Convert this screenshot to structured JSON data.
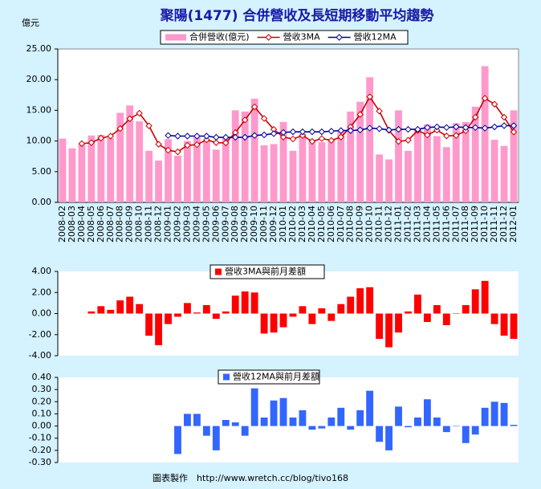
{
  "unit_label": "億元",
  "footer": "圖表製作　http://www.wretch.cc/blog/tivo168",
  "chart_data": [
    {
      "type": "bar",
      "title": "聚陽(1477) 合併營收及長短期移動平均趨勢",
      "categories": [
        "2008-02",
        "2008-03",
        "2008-04",
        "2008-05",
        "2008-06",
        "2008-07",
        "2008-08",
        "2008-09",
        "2008-10",
        "2008-11",
        "2008-12",
        "2009-01",
        "2009-02",
        "2009-03",
        "2009-04",
        "2009-05",
        "2009-06",
        "2009-07",
        "2009-08",
        "2009-09",
        "2009-10",
        "2009-11",
        "2009-12",
        "2010-01",
        "2010-02",
        "2010-03",
        "2010-04",
        "2010-05",
        "2010-06",
        "2010-07",
        "2010-08",
        "2010-09",
        "2010-10",
        "2010-11",
        "2010-12",
        "2011-01",
        "2011-02",
        "2011-03",
        "2011-04",
        "2011-05",
        "2011-06",
        "2011-07",
        "2011-08",
        "2011-09",
        "2011-10",
        "2011-11",
        "2011-12",
        "2012-01"
      ],
      "series": [
        {
          "name": "合併營收(億元)",
          "type": "bar",
          "color": "#ff99cc",
          "values": [
            10.4,
            8.8,
            9.5,
            10.9,
            11.0,
            10.5,
            14.6,
            15.8,
            13.2,
            8.4,
            6.8,
            10.3,
            7.6,
            10.0,
            10.6,
            10.0,
            8.6,
            10.5,
            15.0,
            14.8,
            16.9,
            9.3,
            9.5,
            13.1,
            8.4,
            11.2,
            10.2,
            9.8,
            10.3,
            11.8,
            14.8,
            16.4,
            20.4,
            7.8,
            7.0,
            15.0,
            8.4,
            11.8,
            12.7,
            10.8,
            9.0,
            12.9,
            13.1,
            15.6,
            22.2,
            10.2,
            9.2,
            15.0
          ]
        },
        {
          "name": "營收3MA",
          "type": "line",
          "color": "#cc0000",
          "values": [
            null,
            null,
            9.57,
            9.73,
            10.47,
            10.8,
            12.03,
            13.63,
            14.53,
            12.47,
            9.47,
            8.5,
            8.23,
            9.3,
            9.4,
            10.2,
            9.73,
            9.7,
            11.37,
            13.43,
            15.57,
            13.67,
            11.9,
            10.63,
            10.33,
            10.9,
            9.93,
            10.4,
            10.1,
            10.63,
            12.3,
            14.33,
            17.2,
            14.87,
            11.73,
            9.93,
            10.13,
            11.73,
            10.97,
            11.77,
            10.83,
            10.9,
            11.67,
            13.87,
            16.97,
            16.0,
            13.87,
            11.47
          ]
        },
        {
          "name": "營收12MA",
          "type": "line",
          "color": "#000099",
          "values": [
            null,
            null,
            null,
            null,
            null,
            null,
            null,
            null,
            null,
            null,
            null,
            10.9,
            10.8,
            10.8,
            10.8,
            10.8,
            10.6,
            10.6,
            10.6,
            10.6,
            10.9,
            11.0,
            11.2,
            11.4,
            11.5,
            11.5,
            11.5,
            11.5,
            11.6,
            11.7,
            11.7,
            11.8,
            12.1,
            12.0,
            11.8,
            11.9,
            11.9,
            11.9,
            12.2,
            12.3,
            12.2,
            12.3,
            12.2,
            12.2,
            12.1,
            12.3,
            12.5,
            12.5
          ]
        }
      ],
      "ylim": [
        0,
        25
      ],
      "yticks": [
        {
          "value": 0,
          "label": "0.00"
        },
        {
          "value": 5,
          "label": "5.00"
        },
        {
          "value": 10,
          "label": "10.00"
        },
        {
          "value": 15,
          "label": "15.00"
        },
        {
          "value": 20,
          "label": "20.00"
        },
        {
          "value": 25,
          "label": "25.00"
        }
      ],
      "grid": false
    },
    {
      "type": "bar",
      "series": [
        {
          "name": "營收3MA與前月差額",
          "type": "bar",
          "color": "#ff0000",
          "values": [
            null,
            null,
            null,
            0.2,
            0.7,
            0.35,
            1.25,
            1.6,
            0.9,
            -2.1,
            -3.0,
            -1.0,
            -0.3,
            1.0,
            0.1,
            0.8,
            -0.5,
            0.2,
            1.7,
            2.1,
            2.0,
            -1.9,
            -1.8,
            -1.3,
            -0.3,
            0.7,
            -1.0,
            0.5,
            -0.7,
            0.9,
            1.6,
            2.4,
            2.5,
            -2.4,
            -3.2,
            -1.8,
            0.2,
            1.8,
            -0.8,
            0.8,
            -1.1,
            0.0,
            0.8,
            2.3,
            3.1,
            -1.0,
            -2.1,
            -2.4
          ]
        }
      ],
      "ylim": [
        -4,
        4
      ],
      "yticks": [
        {
          "value": -4,
          "label": "-4.00"
        },
        {
          "value": -2,
          "label": "-2.00"
        },
        {
          "value": 0,
          "label": "0.00"
        },
        {
          "value": 2,
          "label": "2.00"
        },
        {
          "value": 4,
          "label": "4.00"
        }
      ],
      "grid": false
    },
    {
      "type": "bar",
      "series": [
        {
          "name": "營收12MA與前月差額",
          "type": "bar",
          "color": "#3366ff",
          "values": [
            null,
            null,
            null,
            null,
            null,
            null,
            null,
            null,
            null,
            null,
            null,
            null,
            -0.23,
            0.1,
            0.1,
            -0.08,
            -0.2,
            0.05,
            0.03,
            -0.08,
            0.31,
            0.07,
            0.21,
            0.23,
            0.07,
            0.13,
            -0.03,
            -0.02,
            0.07,
            0.15,
            -0.03,
            0.13,
            0.29,
            -0.13,
            -0.2,
            0.16,
            -0.01,
            0.07,
            0.22,
            0.07,
            -0.05,
            0.0,
            -0.14,
            -0.07,
            0.15,
            0.2,
            0.19,
            0.01
          ]
        }
      ],
      "ylim": [
        -0.3,
        0.4
      ],
      "yticks": [
        {
          "value": -0.3,
          "label": "-0.30"
        },
        {
          "value": -0.2,
          "label": "-0.20"
        },
        {
          "value": -0.1,
          "label": "-0.10"
        },
        {
          "value": 0,
          "label": "0.00"
        },
        {
          "value": 0.1,
          "label": "0.10"
        },
        {
          "value": 0.2,
          "label": "0.20"
        },
        {
          "value": 0.3,
          "label": "0.30"
        },
        {
          "value": 0.4,
          "label": "0.40"
        }
      ],
      "grid": false
    }
  ]
}
